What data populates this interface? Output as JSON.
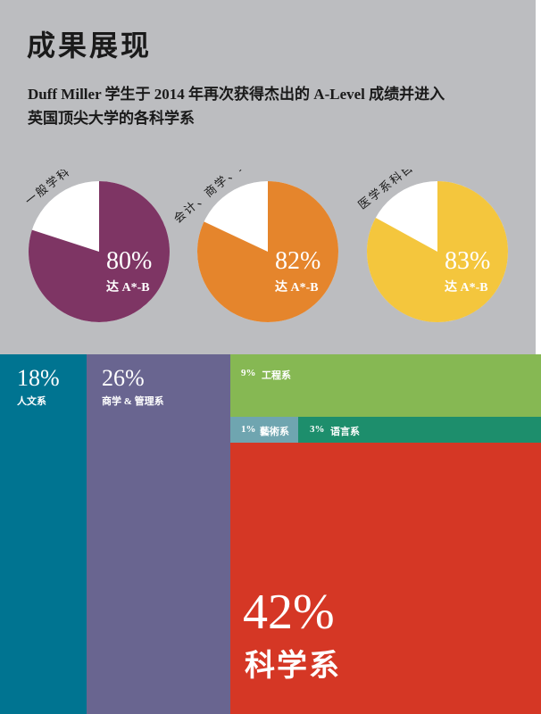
{
  "header": {
    "title": "成果展现",
    "subtitle_line1": "Duff Miller 学生于 2014 年再次获得杰出的 A-Level 成绩并进入",
    "subtitle_line2": "英国顶尖大学的各科学系"
  },
  "chart_data": [
    {
      "type": "pie",
      "slices": [
        {
          "label": "一般学科",
          "pct_text": "80%",
          "sub_text": "达 A*-B",
          "value": 80,
          "color": "#7e3564"
        },
        {
          "label": "会计、商学、经济",
          "pct_text": "82%",
          "sub_text": "达 A*-B",
          "value": 82,
          "color": "#e5852c"
        },
        {
          "label": "医学系科目",
          "pct_text": "83%",
          "sub_text": "达 A*-B",
          "value": 83,
          "color": "#f4c63d"
        }
      ],
      "remainder_color": "#ffffff"
    },
    {
      "type": "table",
      "treemap": [
        {
          "pct_text": "18%",
          "label": "人文系",
          "value": 18,
          "color": "#007491"
        },
        {
          "pct_text": "26%",
          "label": "商学 & 管理系",
          "value": 26,
          "color": "#696590"
        },
        {
          "pct_text": "9%",
          "label": "工程系",
          "value": 9,
          "color": "#86b853"
        },
        {
          "pct_text": "1%",
          "label": "藝術系",
          "value": 1,
          "color": "#6fa5b0"
        },
        {
          "pct_text": "3%",
          "label": "语言系",
          "value": 3,
          "color": "#1d8e6c"
        },
        {
          "pct_text": "42%",
          "label": "科学系",
          "value": 42,
          "color": "#d53725"
        }
      ]
    }
  ]
}
